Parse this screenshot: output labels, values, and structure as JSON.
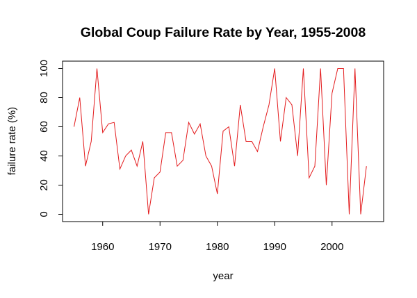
{
  "chart_data": {
    "type": "line",
    "title": "Global Coup Failure Rate by Year, 1955-2008",
    "xlabel": "year",
    "ylabel": "failure rate (%)",
    "xlim": [
      1953,
      2009
    ],
    "ylim": [
      -5,
      105
    ],
    "x_ticks": [
      1960,
      1970,
      1980,
      1990,
      2000
    ],
    "y_ticks": [
      0,
      20,
      40,
      60,
      80,
      100
    ],
    "grid": false,
    "legend": "none",
    "series": [
      {
        "color": "#e31a1c",
        "x": [
          1955,
          1956,
          1957,
          1958,
          1959,
          1960,
          1961,
          1962,
          1963,
          1964,
          1965,
          1966,
          1967,
          1968,
          1969,
          1970,
          1971,
          1972,
          1973,
          1974,
          1975,
          1976,
          1977,
          1978,
          1979,
          1980,
          1981,
          1982,
          1983,
          1984,
          1985,
          1986,
          1987,
          1988,
          1989,
          1990,
          1991,
          1992,
          1993,
          1994,
          1995,
          1996,
          1997,
          1998,
          1999,
          2000,
          2001,
          2002,
          2003,
          2004,
          2005,
          2006
        ],
        "y": [
          60,
          80,
          33,
          50,
          100,
          56,
          62,
          63,
          31,
          40,
          44,
          33,
          50,
          0,
          25,
          29,
          56,
          56,
          33,
          37,
          63,
          55,
          62,
          40,
          33,
          14,
          57,
          60,
          33,
          75,
          50,
          50,
          43,
          60,
          75,
          100,
          50,
          80,
          75,
          40,
          100,
          25,
          33,
          100,
          20,
          83,
          100,
          100,
          0,
          100,
          0,
          33
        ]
      }
    ]
  }
}
